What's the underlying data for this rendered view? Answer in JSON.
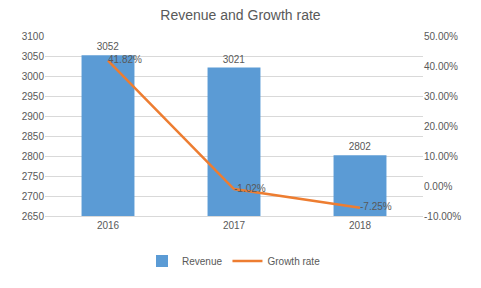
{
  "chart_data": {
    "type": "bar",
    "title": "Revenue and Growth rate",
    "categories": [
      "2016",
      "2017",
      "2018"
    ],
    "series": [
      {
        "name": "Revenue",
        "type": "bar",
        "color": "#5b9bd5",
        "values": [
          3052,
          3021,
          2802
        ]
      },
      {
        "name": "Growth rate",
        "type": "line",
        "axis": "y2",
        "color": "#ed7d31",
        "values": [
          41.82,
          -1.02,
          -7.25
        ],
        "value_labels": [
          "41.82%",
          "-1.02%",
          "-7.25%"
        ]
      }
    ],
    "ylim": [
      2650,
      3100
    ],
    "yticks": [
      2650,
      2700,
      2750,
      2800,
      2850,
      2900,
      2950,
      3000,
      3050,
      3100
    ],
    "y2lim": [
      -10,
      50
    ],
    "y2ticks": [
      {
        "value": -10,
        "label": "-10.00%"
      },
      {
        "value": 0,
        "label": "0.00%"
      },
      {
        "value": 10,
        "label": "10.00%"
      },
      {
        "value": 20,
        "label": "20.00%"
      },
      {
        "value": 30,
        "label": "30.00%"
      },
      {
        "value": 40,
        "label": "40.00%"
      },
      {
        "value": 50,
        "label": "50.00%"
      }
    ],
    "grid": true,
    "legend": "bottom",
    "data_labels": true
  }
}
